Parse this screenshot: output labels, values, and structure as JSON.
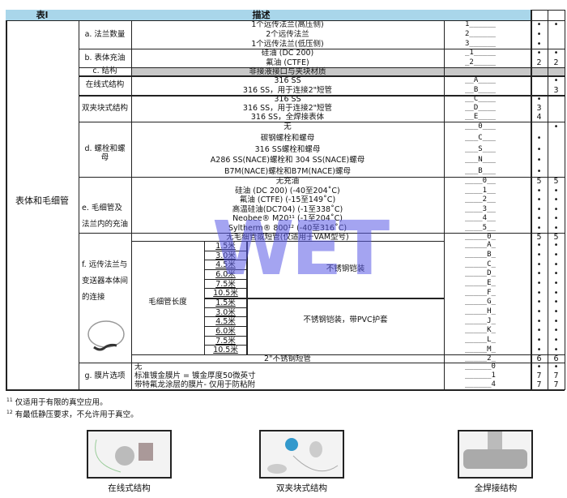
{
  "header": {
    "col1": "表l",
    "col2": "描述"
  },
  "group_label": "表体和毛细管",
  "sections": [
    {
      "key": "a",
      "label": "a. 法兰数量",
      "options": [
        [
          "1个远传法兰(高压侧)",
          "1______",
          "•",
          "•"
        ],
        [
          "2个远传法兰",
          "2______",
          "•",
          ""
        ],
        [
          "1个远传法兰(低压侧)",
          "3______",
          "•",
          ""
        ]
      ]
    },
    {
      "key": "b",
      "label": "b. 表体充油",
      "options": [
        [
          "硅油 (DC 200)",
          "_1_____",
          "•",
          "•"
        ],
        [
          "氟油 (CTFE)",
          "_2_____",
          "2",
          "2"
        ]
      ]
    },
    {
      "key": "c",
      "label": "c. 结构",
      "options": [
        [
          "非接液接口与夹块材质",
          "",
          "",
          ""
        ]
      ]
    },
    {
      "key": "inline",
      "label": "在线式结构",
      "options": [
        [
          "316 SS",
          "__A____",
          "",
          "•"
        ],
        [
          "316 SS，用于连接2\"短管",
          "__B____",
          "",
          "3"
        ]
      ]
    },
    {
      "key": "dual",
      "label": "双夹块式结构",
      "options": [
        [
          "316 SS",
          "__C____",
          "•",
          ""
        ],
        [
          "316 SS，用于连接2\"短管",
          "__D____",
          "3",
          ""
        ],
        [
          "316 SS，全焊接表体",
          "__E____",
          "4",
          ""
        ]
      ]
    },
    {
      "key": "d",
      "label": "d. 螺栓和螺母",
      "options": [
        [
          "无",
          "___0___",
          "",
          "•"
        ],
        [
          "碳钢螺栓和螺母",
          "___C___",
          "•",
          ""
        ],
        [
          "316 SS螺栓和螺母",
          "___S___",
          "•",
          ""
        ],
        [
          "A286 SS(NACE)螺栓和 304 SS(NACE)螺母",
          "___N___",
          "•",
          ""
        ],
        [
          "B7M(NACE)螺栓和B7M(NACE)螺母",
          "___B___",
          "•",
          ""
        ]
      ]
    },
    {
      "key": "e",
      "label": "e. 毛细管及法兰内的充油",
      "options": [
        [
          "无充油",
          "____0__",
          "5",
          "5"
        ],
        [
          "硅油 (DC 200) (-40至204˚C)",
          "____1__",
          "•",
          "•"
        ],
        [
          "氟油 (CTFE) (-15至149˚C)",
          "____2__",
          "•",
          "•"
        ],
        [
          "高温硅油(DC704) (-1至338˚C)",
          "____3__",
          "•",
          "•"
        ],
        [
          "Neobee® M20¹¹ (-1至204˚C)",
          "____4__",
          "•",
          "•"
        ],
        [
          "Syltherm® 800¹² (-40至316˚C)",
          "____5__",
          "•",
          "•"
        ]
      ]
    },
    {
      "key": "f",
      "label": "f. 远传法兰与变送器本体间的连接",
      "options": [
        [
          "无毛细管或短管(仅适用于VAM型号)",
          "_____0_",
          "5",
          "5"
        ],
        [
          "",
          "_____A_",
          "•",
          "•"
        ],
        [
          "",
          "_____B_",
          "•",
          "•"
        ],
        [
          "",
          "_____C_",
          "•",
          "•"
        ],
        [
          "",
          "_____D_",
          "•",
          "•"
        ],
        [
          "",
          "_____E_",
          "•",
          "•"
        ],
        [
          "",
          "_____F_",
          "•",
          "•"
        ],
        [
          "",
          "_____G_",
          "•",
          "•"
        ],
        [
          "",
          "_____H_",
          "•",
          "•"
        ],
        [
          "",
          "_____J_",
          "•",
          "•"
        ],
        [
          "",
          "_____K_",
          "•",
          "•"
        ],
        [
          "",
          "_____L_",
          "•",
          "•"
        ],
        [
          "",
          "_____M_",
          "•",
          "•"
        ],
        [
          "2\"不锈钢短管",
          "_____2_",
          "6",
          "6"
        ]
      ]
    },
    {
      "key": "g",
      "label": "g. 膜片选项",
      "options": [
        [
          "无",
          "______0",
          "•",
          "•"
        ],
        [
          "标准镀金膜片 = 镀金厚度50微英寸",
          "______1",
          "7",
          "7"
        ],
        [
          "带特氟龙涂层的膜片- 仅用于防粘附",
          "______4",
          "7",
          "7"
        ]
      ]
    }
  ],
  "capillary": {
    "label": "毛细管长度",
    "lengths": [
      "1.5米",
      "3.0米",
      "4.5米",
      "6.0米",
      "7.5米",
      "10.5米",
      "1.5米",
      "3.0米",
      "4.5米",
      "6.0米",
      "7.5米",
      "10.5米"
    ],
    "armor1": "不锈钢铠装",
    "armor2": "不锈钢铠装，带PVC护套"
  },
  "footnotes": [
    {
      "mark": "11",
      "text": "仅适用于有限的真空应用。"
    },
    {
      "mark": "12",
      "text": "有最低静压要求，不允许用于真空。"
    }
  ],
  "photos": [
    "在线式结构",
    "双夹块式结构",
    "全焊接结构"
  ],
  "watermark": "WET",
  "colors": {
    "header": "#a9d6ea",
    "gray_row": "#c8c8c8",
    "watermark": "#5a5ae6"
  }
}
